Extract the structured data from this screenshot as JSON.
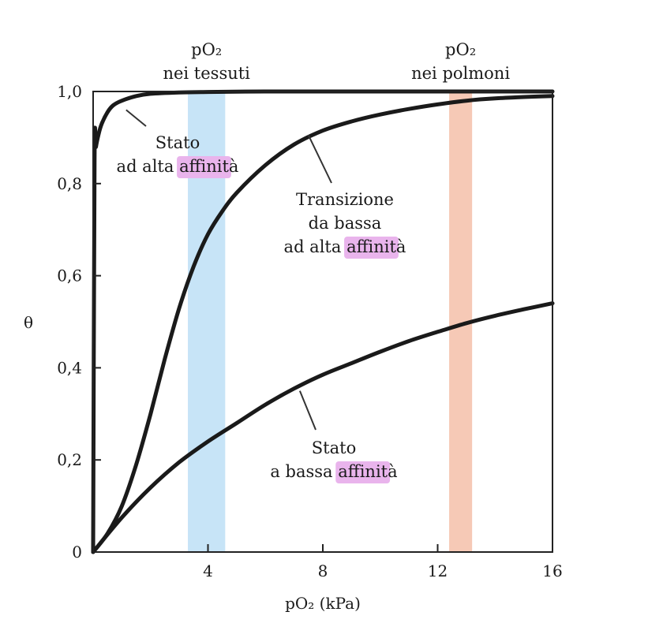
{
  "chart_data": {
    "type": "line",
    "title": "",
    "xlabel": "pO₂ (kPa)",
    "ylabel": "θ",
    "xlim": [
      0,
      16
    ],
    "ylim": [
      0,
      1
    ],
    "x_ticks": [
      4,
      8,
      12,
      16
    ],
    "x_tick_labels": [
      "4",
      "8",
      "12",
      "16"
    ],
    "y_ticks": [
      0,
      0.2,
      0.4,
      0.6,
      0.8,
      1.0
    ],
    "y_tick_labels": [
      "0",
      "0,2",
      "0,4",
      "0,6",
      "0,8",
      "1,0"
    ],
    "grid": false,
    "legend": "none",
    "bands": [
      {
        "label_line1": "pO₂",
        "label_line2": "nei tessuti",
        "x0": 3.3,
        "x1": 4.6,
        "color": "#c7e4f7"
      },
      {
        "label_line1": "pO₂",
        "label_line2": "nei polmoni",
        "x0": 12.4,
        "x1": 13.2,
        "color": "#f6c9b6"
      }
    ],
    "series": [
      {
        "x": [
          0,
          0.05,
          0.1,
          0.2,
          0.3,
          0.5,
          0.7,
          1.0,
          1.5,
          2.0,
          3.0,
          4.0,
          6.0,
          8.0,
          10.0,
          12.0,
          14.0,
          16.0
        ],
        "values": [
          0,
          0.85,
          0.88,
          0.91,
          0.93,
          0.955,
          0.97,
          0.98,
          0.99,
          0.995,
          0.998,
          0.999,
          1.0,
          1.0,
          1.0,
          1.0,
          1.0,
          1.0
        ]
      },
      {
        "x": [
          0,
          0.5,
          1.0,
          1.5,
          2.0,
          2.5,
          3.0,
          3.5,
          4.0,
          4.5,
          5.0,
          6.0,
          7.0,
          8.0,
          9.0,
          10.0,
          11.0,
          12.0,
          13.0,
          14.0,
          15.0,
          16.0
        ],
        "values": [
          0,
          0.04,
          0.1,
          0.19,
          0.3,
          0.42,
          0.53,
          0.62,
          0.69,
          0.74,
          0.78,
          0.84,
          0.885,
          0.915,
          0.935,
          0.95,
          0.962,
          0.972,
          0.98,
          0.985,
          0.988,
          0.99
        ]
      },
      {
        "x": [
          0,
          1,
          2,
          3,
          4,
          5,
          6,
          7,
          8,
          9,
          10,
          11,
          12,
          13,
          14,
          15,
          16
        ],
        "values": [
          0,
          0.075,
          0.14,
          0.195,
          0.24,
          0.28,
          0.32,
          0.355,
          0.385,
          0.41,
          0.435,
          0.458,
          0.478,
          0.497,
          0.513,
          0.527,
          0.54
        ]
      }
    ],
    "annotations": [
      {
        "lines": [
          "Stato",
          "ad alta ",
          "affinit",
          "à"
        ],
        "highlight": "affinit",
        "pointer": {
          "x": 1.15,
          "y": 0.96
        }
      },
      {
        "lines": [
          "Transizione",
          "da bassa",
          "ad alta ",
          "affinit",
          "à"
        ],
        "highlight": "affinit",
        "pointer": {
          "x": 7.5,
          "y": 0.905
        }
      },
      {
        "lines": [
          "Stato",
          "a bassa ",
          "affinit",
          "à"
        ],
        "highlight": "affinit",
        "pointer": {
          "x": 7.2,
          "y": 0.35
        }
      }
    ],
    "highlight_color": "#e9b4ec",
    "curve_color": "#1a1a1a"
  }
}
